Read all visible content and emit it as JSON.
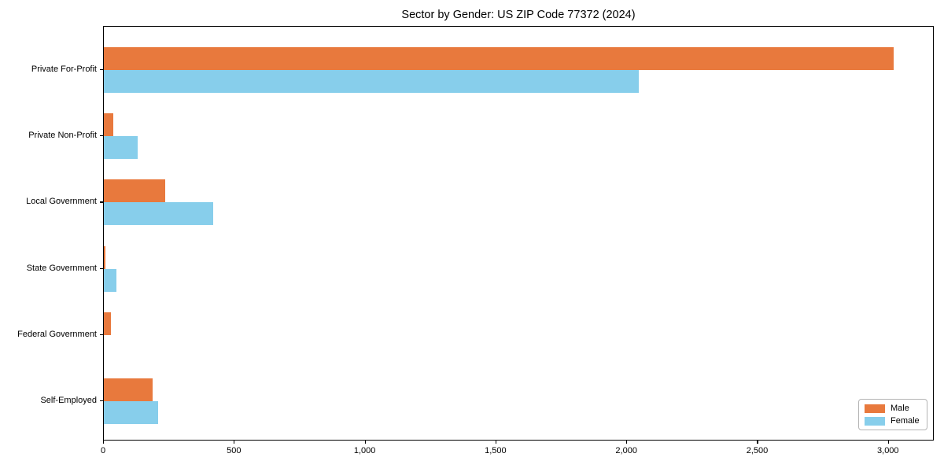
{
  "chart_data": {
    "type": "bar",
    "orientation": "horizontal",
    "title": "Sector by Gender: US ZIP Code 77372 (2024)",
    "categories": [
      "Private For-Profit",
      "Private Non-Profit",
      "Local Government",
      "State Government",
      "Federal Government",
      "Self-Employed"
    ],
    "series": [
      {
        "name": "Male",
        "color": "#e8793d",
        "values": [
          3020,
          35,
          234,
          5,
          26,
          186
        ]
      },
      {
        "name": "Female",
        "color": "#87ceeb",
        "values": [
          2045,
          130,
          419,
          47,
          0,
          206
        ]
      }
    ],
    "xlabel": "",
    "ylabel": "",
    "xlim": [
      0,
      3175
    ],
    "xticks": [
      0,
      500,
      1000,
      1500,
      2000,
      2500,
      3000
    ],
    "xtick_labels": [
      "0",
      "500",
      "1,000",
      "1,500",
      "2,000",
      "2,500",
      "3,000"
    ],
    "grid": false,
    "legend_position": "lower right",
    "frame": "full-box"
  }
}
